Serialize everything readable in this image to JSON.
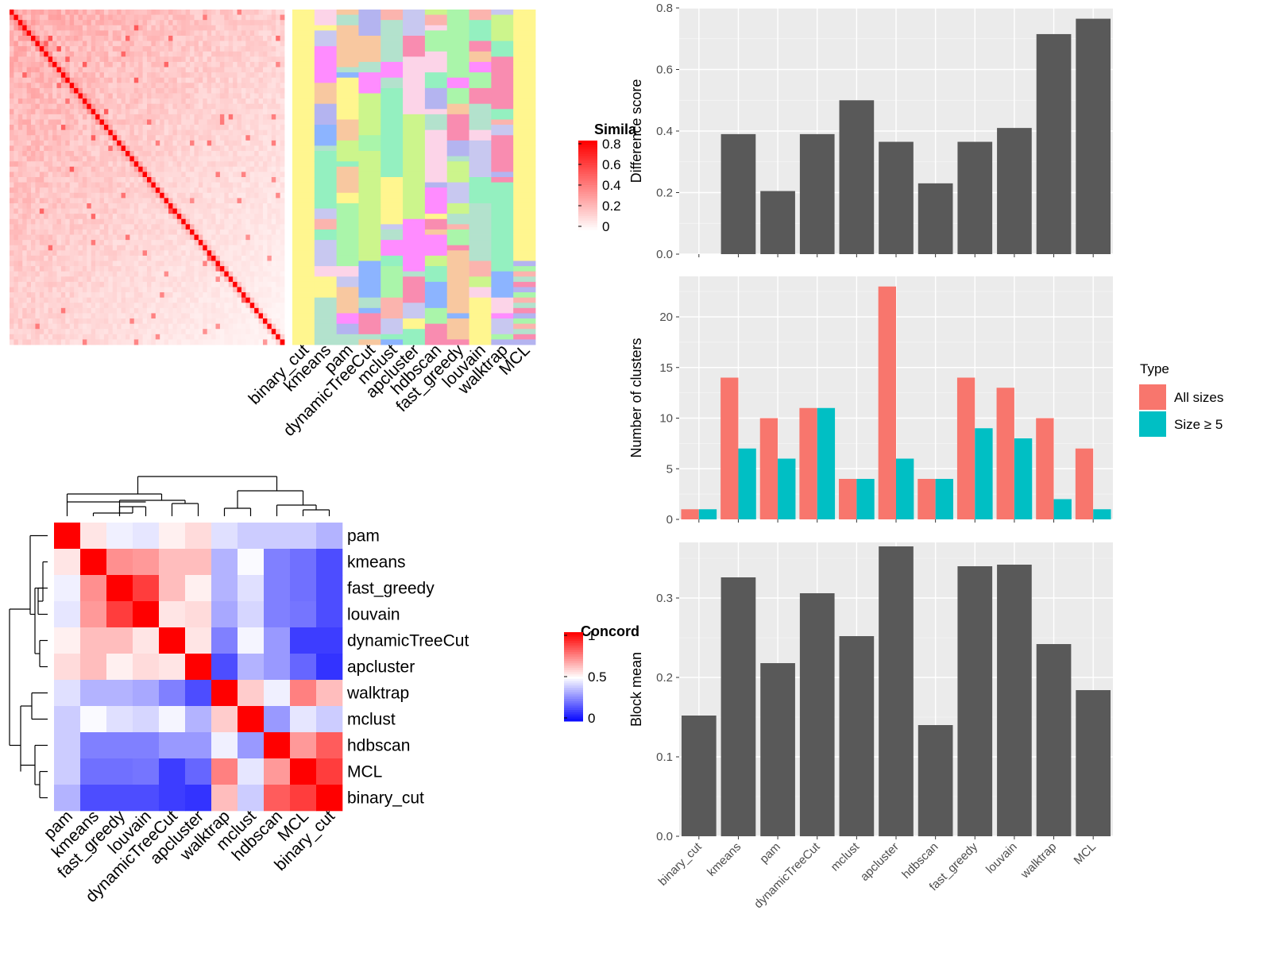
{
  "chart_data": [
    {
      "type": "heatmap",
      "panel": "similarity-heatmap",
      "legend_title": "Simila",
      "legend_ticks": [
        "0.8",
        "0.6",
        "0.4",
        "0.2",
        "0"
      ],
      "annotation_columns": [
        "binary_cut",
        "kmeans",
        "pam",
        "dynamicTreeCut",
        "mclust",
        "apcluster",
        "hdbscan",
        "fast_greedy",
        "louvain",
        "walktrap",
        "MCL"
      ],
      "cluster_colors": [
        "#fff68f",
        "#fbb4ae",
        "#b3e2cd",
        "#f98cb0",
        "#b4b4f0",
        "#aaf5aa",
        "#ff8cff",
        "#f8c8a0",
        "#ccf58c",
        "#8cb4ff",
        "#fcd4e8",
        "#c8c8f0",
        "#94f0c0"
      ]
    },
    {
      "type": "heatmap",
      "panel": "concordance-heatmap",
      "legend_title": "Concord",
      "legend_ticks": [
        "1",
        "0.5",
        "0"
      ],
      "methods": [
        "pam",
        "kmeans",
        "fast_greedy",
        "louvain",
        "dynamicTreeCut",
        "apcluster",
        "walktrap",
        "mclust",
        "hdbscan",
        "MCL",
        "binary_cut"
      ],
      "matrix": [
        [
          1.0,
          0.55,
          0.47,
          0.45,
          0.53,
          0.57,
          0.44,
          0.4,
          0.4,
          0.4,
          0.35
        ],
        [
          0.55,
          1.0,
          0.72,
          0.7,
          0.63,
          0.63,
          0.35,
          0.49,
          0.25,
          0.22,
          0.15
        ],
        [
          0.47,
          0.72,
          1.0,
          0.88,
          0.63,
          0.53,
          0.35,
          0.44,
          0.25,
          0.22,
          0.15
        ],
        [
          0.45,
          0.7,
          0.88,
          1.0,
          0.55,
          0.57,
          0.33,
          0.42,
          0.25,
          0.23,
          0.15
        ],
        [
          0.53,
          0.63,
          0.63,
          0.55,
          1.0,
          0.55,
          0.25,
          0.48,
          0.3,
          0.12,
          0.12
        ],
        [
          0.57,
          0.63,
          0.53,
          0.57,
          0.55,
          1.0,
          0.15,
          0.35,
          0.3,
          0.2,
          0.1
        ],
        [
          0.44,
          0.35,
          0.35,
          0.33,
          0.25,
          0.15,
          1.0,
          0.6,
          0.47,
          0.75,
          0.63
        ],
        [
          0.4,
          0.49,
          0.44,
          0.42,
          0.48,
          0.35,
          0.6,
          1.0,
          0.3,
          0.45,
          0.4
        ],
        [
          0.4,
          0.25,
          0.25,
          0.25,
          0.3,
          0.3,
          0.47,
          0.3,
          1.0,
          0.7,
          0.82
        ],
        [
          0.4,
          0.22,
          0.22,
          0.23,
          0.12,
          0.2,
          0.75,
          0.45,
          0.7,
          1.0,
          0.88
        ],
        [
          0.35,
          0.15,
          0.15,
          0.15,
          0.12,
          0.1,
          0.63,
          0.4,
          0.82,
          0.88,
          1.0
        ]
      ]
    },
    {
      "type": "bar",
      "panel": "difference-score",
      "categories": [
        "binary_cut",
        "kmeans",
        "pam",
        "dynamicTreeCut",
        "mclust",
        "apcluster",
        "hdbscan",
        "fast_greedy",
        "louvain",
        "walktrap",
        "MCL"
      ],
      "values": [
        0.0,
        0.39,
        0.205,
        0.39,
        0.5,
        0.365,
        0.23,
        0.365,
        0.41,
        0.715,
        0.765
      ],
      "ylabel": "Difference score",
      "ylim": [
        0,
        0.8
      ],
      "yticks": [
        0.0,
        0.2,
        0.4,
        0.6,
        0.8
      ],
      "ytick_labels": [
        "0.0",
        "0.2",
        "0.4",
        "0.6",
        "0.8"
      ],
      "color": "#595959"
    },
    {
      "type": "bar",
      "panel": "number-of-clusters",
      "categories": [
        "binary_cut",
        "kmeans",
        "pam",
        "dynamicTreeCut",
        "mclust",
        "apcluster",
        "hdbscan",
        "fast_greedy",
        "louvain",
        "walktrap",
        "MCL"
      ],
      "series": [
        {
          "name": "All sizes",
          "values": [
            1,
            14,
            10,
            11,
            4,
            23,
            4,
            14,
            13,
            10,
            7
          ],
          "color": "#f8766d"
        },
        {
          "name": "Size ≥ 5",
          "values": [
            1,
            7,
            6,
            11,
            4,
            6,
            4,
            9,
            8,
            2,
            1
          ],
          "color": "#00bfc4"
        }
      ],
      "ylabel": "Number of clusters",
      "ylim": [
        0,
        24
      ],
      "yticks": [
        0,
        5,
        10,
        15,
        20
      ],
      "ytick_labels": [
        "0",
        "5",
        "10",
        "15",
        "20"
      ],
      "legend_title": "Type",
      "legend_position": "right"
    },
    {
      "type": "bar",
      "panel": "block-mean",
      "categories": [
        "binary_cut",
        "kmeans",
        "pam",
        "dynamicTreeCut",
        "mclust",
        "apcluster",
        "hdbscan",
        "fast_greedy",
        "louvain",
        "walktrap",
        "MCL"
      ],
      "values": [
        0.152,
        0.326,
        0.218,
        0.306,
        0.252,
        0.365,
        0.14,
        0.34,
        0.342,
        0.242,
        0.184
      ],
      "ylabel": "Block mean",
      "ylim": [
        0,
        0.37
      ],
      "yticks": [
        0.0,
        0.1,
        0.2,
        0.3
      ],
      "ytick_labels": [
        "0.0",
        "0.1",
        "0.2",
        "0.3"
      ],
      "color": "#595959"
    }
  ]
}
